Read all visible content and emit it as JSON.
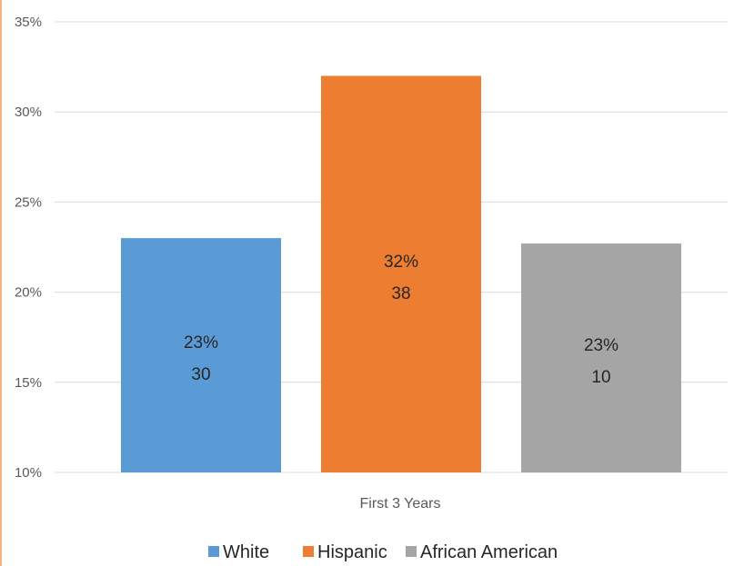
{
  "chart_data": {
    "type": "bar",
    "categories": [
      "First 3 Years"
    ],
    "series": [
      {
        "name": "White",
        "values": [
          23
        ],
        "label_pct": "23%",
        "label_count": "30",
        "color": "#5b9bd5"
      },
      {
        "name": "Hispanic",
        "values": [
          32
        ],
        "label_pct": "32%",
        "label_count": "38",
        "color": "#ed7d31"
      },
      {
        "name": "African American",
        "values": [
          22.7
        ],
        "label_pct": "23%",
        "label_count": "10",
        "color": "#a5a5a5"
      }
    ],
    "ylim": [
      10,
      35
    ],
    "yticks": [
      "10%",
      "15%",
      "20%",
      "25%",
      "30%",
      "35%"
    ],
    "ytick_values": [
      10,
      15,
      20,
      25,
      30,
      35
    ],
    "grid": true,
    "legend": "bottom"
  }
}
